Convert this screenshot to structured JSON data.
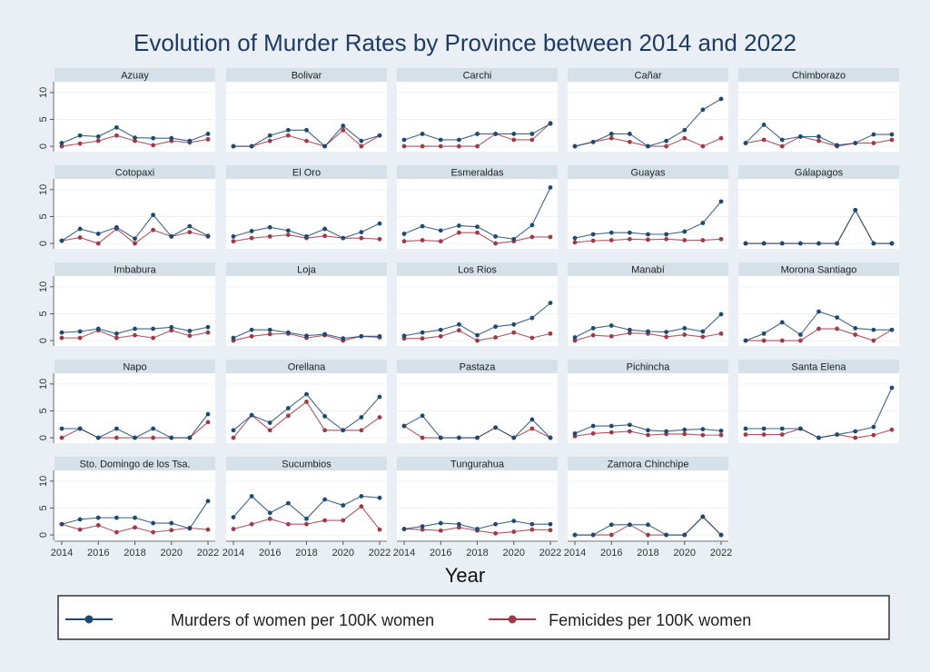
{
  "chart_data": {
    "type": "line",
    "title": "Evolution of Murder Rates by Province between 2014 and 2022",
    "xlabel": "Year",
    "ylabel": "",
    "x": [
      2014,
      2015,
      2016,
      2017,
      2018,
      2019,
      2020,
      2021,
      2022
    ],
    "x_ticks": [
      2014,
      2016,
      2018,
      2020,
      2022
    ],
    "y_ticks": [
      0,
      5,
      10
    ],
    "ylim": [
      -1,
      12
    ],
    "grid": true,
    "legend_placement": "bottom",
    "legend": [
      "Murders of women per 100K women",
      "Femicides per 100K women"
    ],
    "colors": {
      "murders": "#1d4a73",
      "femicides": "#a13a48"
    },
    "panels": [
      {
        "name": "Azuay",
        "murders": [
          0.6,
          2,
          1.8,
          3.5,
          1.6,
          1.5,
          1.5,
          1,
          2.3
        ],
        "femicides": [
          0,
          0.5,
          1,
          2,
          1,
          0.2,
          1,
          0.7,
          1.3
        ]
      },
      {
        "name": "Bolivar",
        "murders": [
          0,
          0,
          2,
          3,
          3,
          0,
          3.8,
          1,
          2
        ],
        "femicides": [
          0,
          0,
          1,
          2,
          1,
          0,
          3,
          0,
          2
        ]
      },
      {
        "name": "Carchi",
        "murders": [
          1.2,
          2.3,
          1.2,
          1.2,
          2.3,
          2.3,
          2.3,
          2.3,
          4.2
        ],
        "femicides": [
          0,
          0,
          0,
          0,
          0,
          2.3,
          1.2,
          1.2,
          4.3
        ]
      },
      {
        "name": "Cañar",
        "murders": [
          0,
          0.8,
          2.3,
          2.3,
          0,
          1,
          3,
          6.8,
          8.8
        ],
        "femicides": [
          0,
          0.8,
          1.5,
          0.8,
          0,
          0,
          1.5,
          0,
          1.5
        ]
      },
      {
        "name": "Chimborazo",
        "murders": [
          0.6,
          4,
          1.2,
          1.8,
          1.8,
          0.2,
          0.6,
          2.2,
          2.2
        ],
        "femicides": [
          0.6,
          1.2,
          0,
          1.8,
          1,
          0,
          0.6,
          0.6,
          1.2
        ]
      },
      {
        "name": "Cotopaxi",
        "murders": [
          0.5,
          2.7,
          1.8,
          3,
          0.9,
          5.3,
          1.3,
          3.2,
          1.4
        ],
        "femicides": [
          0.5,
          1.1,
          0,
          2.7,
          0,
          2.5,
          1.3,
          2.1,
          1.3
        ]
      },
      {
        "name": "El Oro",
        "murders": [
          1.3,
          2.3,
          3,
          2.4,
          1.3,
          2.7,
          1,
          2.1,
          3.7
        ],
        "femicides": [
          0.4,
          1,
          1.3,
          1.6,
          1,
          1.4,
          1,
          1,
          0.8
        ]
      },
      {
        "name": "Esmeraldas",
        "murders": [
          1.8,
          3.2,
          2.4,
          3.3,
          3.1,
          1.3,
          0.8,
          3.4,
          10.4
        ],
        "femicides": [
          0.4,
          0.6,
          0.4,
          2,
          2,
          0,
          0.4,
          1.2,
          1.2
        ]
      },
      {
        "name": "Guayas",
        "murders": [
          1,
          1.7,
          2,
          2,
          1.7,
          1.7,
          2.2,
          3.8,
          7.8
        ],
        "femicides": [
          0.2,
          0.5,
          0.6,
          0.8,
          0.7,
          0.8,
          0.6,
          0.6,
          0.8
        ]
      },
      {
        "name": "Gálapagos",
        "murders": [
          0,
          0,
          0,
          0,
          0,
          0,
          6.2,
          0,
          0
        ],
        "femicides": [
          0,
          0,
          0,
          0,
          0,
          0,
          6.2,
          0,
          0
        ]
      },
      {
        "name": "Imbabura",
        "murders": [
          1.5,
          1.7,
          2.2,
          1.3,
          2.2,
          2.2,
          2.5,
          1.8,
          2.5
        ],
        "femicides": [
          0.5,
          0.5,
          1.9,
          0.5,
          1,
          0.5,
          1.9,
          0.9,
          1.5
        ]
      },
      {
        "name": "Loja",
        "murders": [
          0.5,
          2,
          2,
          1.5,
          0.9,
          1.2,
          0.4,
          0.8,
          0.8
        ],
        "femicides": [
          0,
          0.8,
          1.2,
          1.3,
          0.5,
          1,
          0,
          0.8,
          0.6
        ]
      },
      {
        "name": "Los Rios",
        "murders": [
          0.9,
          1.5,
          2,
          3,
          1,
          2.6,
          3,
          4.2,
          7
        ],
        "femicides": [
          0.4,
          0.4,
          0.8,
          1.9,
          0,
          0.6,
          1.5,
          0.5,
          1.3
        ]
      },
      {
        "name": "Manabí",
        "murders": [
          0.6,
          2.3,
          2.8,
          2,
          1.7,
          1.6,
          2.3,
          1.7,
          4.9
        ],
        "femicides": [
          0,
          1,
          0.8,
          1.4,
          1.3,
          0.7,
          1.1,
          0.7,
          1.3
        ]
      },
      {
        "name": "Morona Santiago",
        "murders": [
          0,
          1.3,
          3.4,
          1.1,
          5.4,
          4.3,
          2.3,
          2,
          2
        ],
        "femicides": [
          0,
          0,
          0,
          0,
          2.2,
          2.2,
          1.1,
          0,
          2
        ]
      },
      {
        "name": "Napo",
        "murders": [
          1.7,
          1.7,
          0,
          1.7,
          0,
          1.7,
          0,
          0,
          4.4
        ],
        "femicides": [
          0,
          1.7,
          0,
          0,
          0,
          0,
          0,
          0,
          2.9
        ]
      },
      {
        "name": "Orellana",
        "murders": [
          1.4,
          4.2,
          2.8,
          5.5,
          8.1,
          4,
          1.4,
          3.8,
          7.6
        ],
        "femicides": [
          0,
          4.2,
          1.4,
          4.1,
          6.7,
          1.4,
          1.4,
          1.4,
          3.8
        ]
      },
      {
        "name": "Pastaza",
        "murders": [
          2.2,
          4.1,
          0,
          0,
          0,
          1.9,
          0,
          3.4,
          0
        ],
        "femicides": [
          2.2,
          0,
          0,
          0,
          0,
          1.9,
          0,
          1.7,
          0
        ]
      },
      {
        "name": "Pichincha",
        "murders": [
          0.8,
          2.2,
          2.2,
          2.4,
          1.4,
          1.2,
          1.5,
          1.6,
          1.3
        ],
        "femicides": [
          0.3,
          0.8,
          1,
          1.2,
          0.5,
          0.7,
          0.7,
          0.5,
          0.5
        ]
      },
      {
        "name": "Santa Elena",
        "murders": [
          1.7,
          1.7,
          1.7,
          1.7,
          0,
          0.6,
          1.2,
          2,
          9.3
        ],
        "femicides": [
          0.6,
          0.6,
          0.6,
          1.7,
          0,
          0.6,
          0,
          0.5,
          1.5
        ]
      },
      {
        "name": "Sto. Domingo de los Tsa.",
        "murders": [
          2,
          2.9,
          3.2,
          3.2,
          3.2,
          2.2,
          2.2,
          1.2,
          6.3
        ],
        "femicides": [
          2,
          1,
          1.8,
          0.5,
          1.4,
          0.5,
          0.9,
          1.3,
          1
        ]
      },
      {
        "name": "Sucumbios",
        "murders": [
          3.3,
          7.2,
          4.1,
          5.9,
          3,
          6.6,
          5.5,
          7.2,
          6.9
        ],
        "femicides": [
          1.1,
          2,
          3,
          2,
          2,
          2.7,
          2.7,
          5.3,
          1
        ]
      },
      {
        "name": "Tungurahua",
        "murders": [
          1.1,
          1.6,
          2.2,
          2,
          1.1,
          2,
          2.6,
          2,
          2
        ],
        "femicides": [
          1.1,
          1,
          0.8,
          1.4,
          0.8,
          0.3,
          0.6,
          1,
          0.9
        ]
      },
      {
        "name": "Zamora Chinchipe",
        "murders": [
          0,
          0,
          1.9,
          1.9,
          1.9,
          0,
          0,
          3.4,
          0
        ],
        "femicides": [
          0,
          0,
          0,
          1.9,
          0,
          0,
          0,
          3.4,
          0
        ]
      }
    ]
  }
}
